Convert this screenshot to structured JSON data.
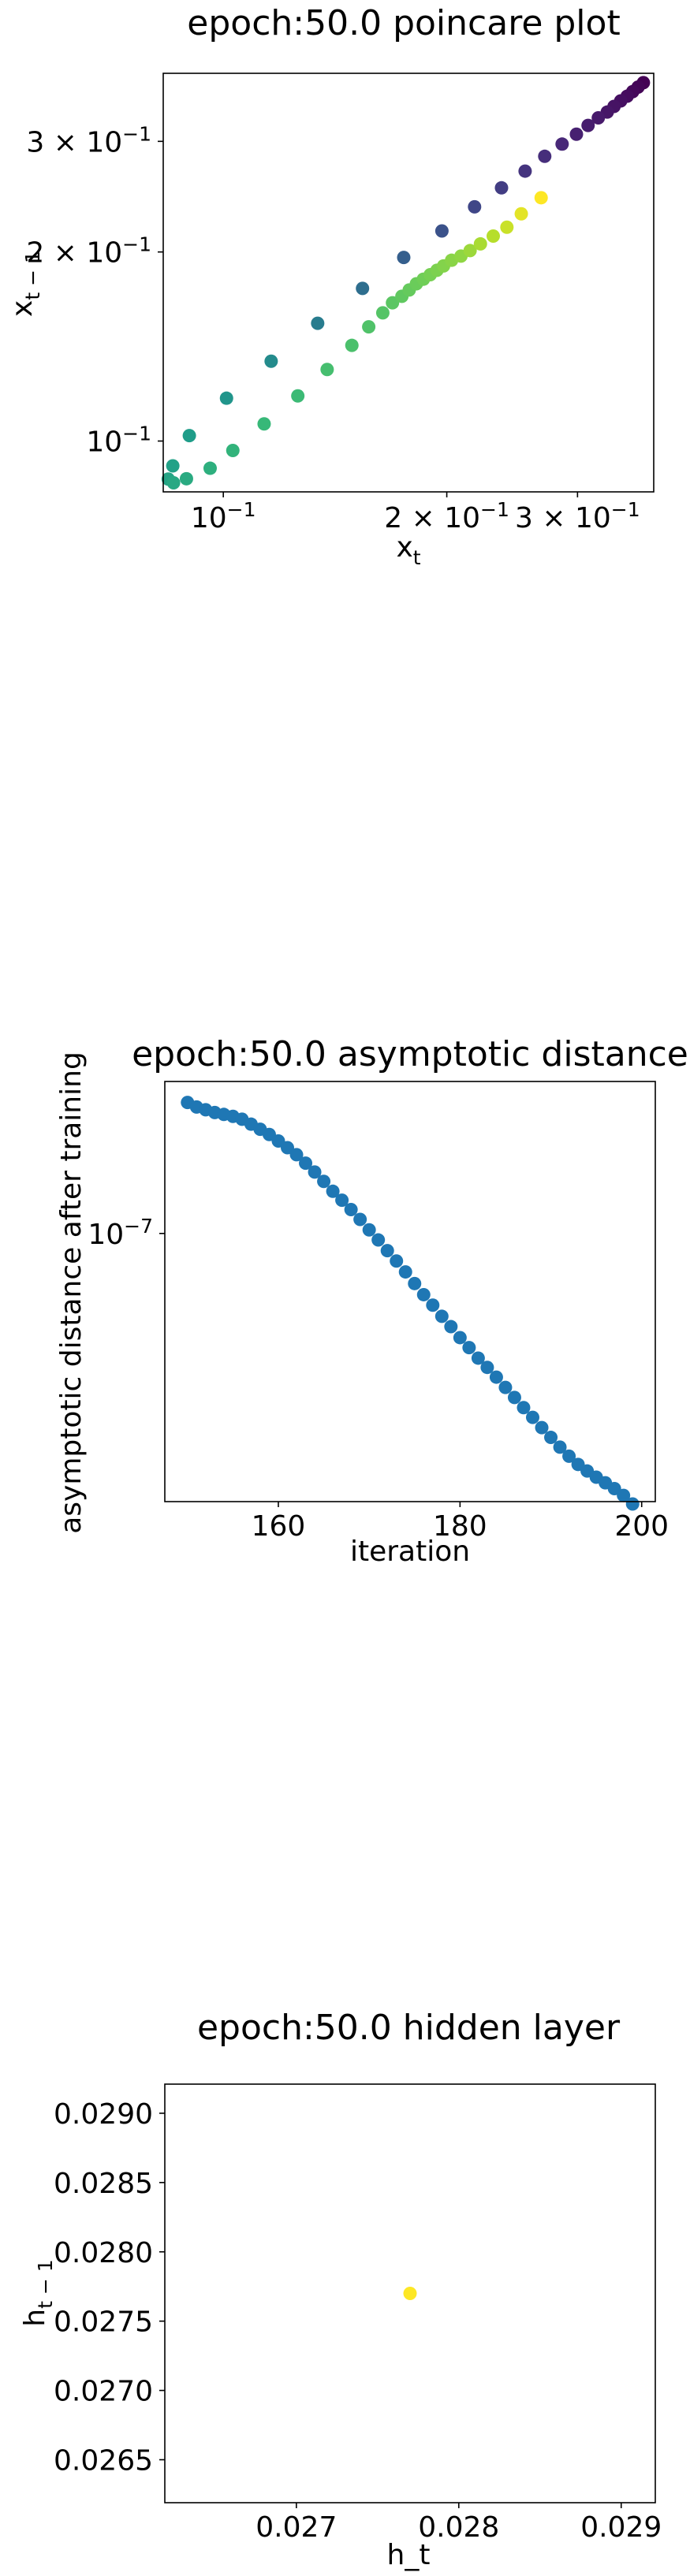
{
  "chart_data": [
    {
      "type": "scatter",
      "title": "epoch:50.0 poincare plot",
      "xlabel": "x",
      "xlabel_sub": "t",
      "ylabel": "x",
      "ylabel_sub": "t − 1",
      "xscale": "log",
      "yscale": "log",
      "xlim": [
        0.083,
        0.38
      ],
      "ylim": [
        0.083,
        0.385
      ],
      "colormap": "viridis",
      "x_ticks": [
        {
          "value": 0.1,
          "mant": "",
          "exp": "−1"
        },
        {
          "value": 0.2,
          "mant": "2 × ",
          "exp": "−1"
        },
        {
          "value": 0.3,
          "mant": "3 × ",
          "exp": "−1"
        }
      ],
      "y_ticks": [
        {
          "value": 0.1,
          "mant": "",
          "exp": "−1"
        },
        {
          "value": 0.2,
          "mant": "2 × ",
          "exp": "−1"
        },
        {
          "value": 0.3,
          "mant": "3 × ",
          "exp": "−1"
        }
      ],
      "points": [
        {
          "x": 0.368,
          "y": 0.372,
          "c": 0.0
        },
        {
          "x": 0.362,
          "y": 0.366,
          "c": 0.01
        },
        {
          "x": 0.356,
          "y": 0.36,
          "c": 0.02
        },
        {
          "x": 0.35,
          "y": 0.354,
          "c": 0.03
        },
        {
          "x": 0.343,
          "y": 0.348,
          "c": 0.04
        },
        {
          "x": 0.336,
          "y": 0.341,
          "c": 0.05
        },
        {
          "x": 0.329,
          "y": 0.334,
          "c": 0.06
        },
        {
          "x": 0.32,
          "y": 0.327,
          "c": 0.07
        },
        {
          "x": 0.31,
          "y": 0.318,
          "c": 0.08
        },
        {
          "x": 0.299,
          "y": 0.308,
          "c": 0.09
        },
        {
          "x": 0.286,
          "y": 0.297,
          "c": 0.11
        },
        {
          "x": 0.271,
          "y": 0.284,
          "c": 0.13
        },
        {
          "x": 0.255,
          "y": 0.269,
          "c": 0.15
        },
        {
          "x": 0.237,
          "y": 0.253,
          "c": 0.18
        },
        {
          "x": 0.218,
          "y": 0.236,
          "c": 0.21
        },
        {
          "x": 0.197,
          "y": 0.216,
          "c": 0.25
        },
        {
          "x": 0.175,
          "y": 0.196,
          "c": 0.3
        },
        {
          "x": 0.154,
          "y": 0.175,
          "c": 0.36
        },
        {
          "x": 0.134,
          "y": 0.154,
          "c": 0.42
        },
        {
          "x": 0.116,
          "y": 0.134,
          "c": 0.48
        },
        {
          "x": 0.101,
          "y": 0.117,
          "c": 0.52
        },
        {
          "x": 0.09,
          "y": 0.102,
          "c": 0.55
        },
        {
          "x": 0.0855,
          "y": 0.0913,
          "c": 0.57
        },
        {
          "x": 0.0843,
          "y": 0.087,
          "c": 0.58
        },
        {
          "x": 0.0857,
          "y": 0.0858,
          "c": 0.6
        },
        {
          "x": 0.0892,
          "y": 0.0871,
          "c": 0.61
        },
        {
          "x": 0.096,
          "y": 0.0905,
          "c": 0.63
        },
        {
          "x": 0.103,
          "y": 0.0966,
          "c": 0.65
        },
        {
          "x": 0.1135,
          "y": 0.1065,
          "c": 0.67
        },
        {
          "x": 0.126,
          "y": 0.118,
          "c": 0.68
        },
        {
          "x": 0.138,
          "y": 0.13,
          "c": 0.7
        },
        {
          "x": 0.149,
          "y": 0.142,
          "c": 0.71
        },
        {
          "x": 0.157,
          "y": 0.152,
          "c": 0.72
        },
        {
          "x": 0.164,
          "y": 0.16,
          "c": 0.73
        },
        {
          "x": 0.169,
          "y": 0.166,
          "c": 0.74
        },
        {
          "x": 0.174,
          "y": 0.17,
          "c": 0.75
        },
        {
          "x": 0.178,
          "y": 0.174,
          "c": 0.76
        },
        {
          "x": 0.182,
          "y": 0.178,
          "c": 0.77
        },
        {
          "x": 0.186,
          "y": 0.181,
          "c": 0.78
        },
        {
          "x": 0.19,
          "y": 0.184,
          "c": 0.79
        },
        {
          "x": 0.194,
          "y": 0.187,
          "c": 0.8
        },
        {
          "x": 0.198,
          "y": 0.19,
          "c": 0.81
        },
        {
          "x": 0.203,
          "y": 0.194,
          "c": 0.82
        },
        {
          "x": 0.209,
          "y": 0.197,
          "c": 0.83
        },
        {
          "x": 0.215,
          "y": 0.201,
          "c": 0.85
        },
        {
          "x": 0.222,
          "y": 0.206,
          "c": 0.87
        },
        {
          "x": 0.231,
          "y": 0.212,
          "c": 0.89
        },
        {
          "x": 0.241,
          "y": 0.219,
          "c": 0.92
        },
        {
          "x": 0.252,
          "y": 0.23,
          "c": 0.96
        },
        {
          "x": 0.268,
          "y": 0.244,
          "c": 1.0
        }
      ]
    },
    {
      "type": "scatter",
      "title": "epoch:50.0 asymptotic distance",
      "xlabel": "iteration",
      "ylabel": "asymptotic distance after training",
      "yscale": "log",
      "xlim": [
        147.5,
        201.5
      ],
      "ylim": [
        2.3e-08,
        2.3e-07
      ],
      "color": "#1f77b4",
      "x_ticks": [
        {
          "value": 160,
          "label": "160"
        },
        {
          "value": 180,
          "label": "180"
        },
        {
          "value": 200,
          "label": "200"
        }
      ],
      "y_ticks": [
        {
          "value": 1e-07,
          "mant": "10",
          "exp": "−7"
        }
      ],
      "x": [
        150,
        151,
        152,
        153,
        154,
        155,
        156,
        157,
        158,
        159,
        160,
        161,
        162,
        163,
        164,
        165,
        166,
        167,
        168,
        169,
        170,
        171,
        172,
        173,
        174,
        175,
        176,
        177,
        178,
        179,
        180,
        181,
        182,
        183,
        184,
        185,
        186,
        187,
        188,
        189,
        190,
        191,
        192,
        193,
        194,
        195,
        196,
        197,
        198,
        199
      ],
      "y": [
        2.05e-07,
        2e-07,
        1.97e-07,
        1.94e-07,
        1.92e-07,
        1.9e-07,
        1.87e-07,
        1.82e-07,
        1.77e-07,
        1.72e-07,
        1.66e-07,
        1.6e-07,
        1.54e-07,
        1.47e-07,
        1.4e-07,
        1.33e-07,
        1.26e-07,
        1.2e-07,
        1.14e-07,
        1.08e-07,
        1.02e-07,
        9.65e-08,
        9.1e-08,
        8.6e-08,
        8.1e-08,
        7.6e-08,
        7.15e-08,
        6.75e-08,
        6.35e-08,
        6e-08,
        5.65e-08,
        5.35e-08,
        5.05e-08,
        4.8e-08,
        4.55e-08,
        4.3e-08,
        4.07e-08,
        3.85e-08,
        3.65e-08,
        3.45e-08,
        3.27e-08,
        3.1e-08,
        2.95e-08,
        2.82e-08,
        2.72e-08,
        2.63e-08,
        2.55e-08,
        2.47e-08,
        2.38e-08,
        2.27e-08
      ]
    },
    {
      "type": "scatter",
      "title": "epoch:50.0 hidden layer",
      "xlabel": "h_t",
      "ylabel": "h",
      "ylabel_sub": "t − 1",
      "xlim": [
        0.02619,
        0.02921
      ],
      "ylim": [
        0.02619,
        0.02921
      ],
      "color": "#fde725",
      "x_ticks": [
        {
          "value": 0.027,
          "label": "0.027"
        },
        {
          "value": 0.028,
          "label": "0.028"
        },
        {
          "value": 0.029,
          "label": "0.029"
        }
      ],
      "y_ticks": [
        {
          "value": 0.0265,
          "label": "0.0265"
        },
        {
          "value": 0.027,
          "label": "0.0270"
        },
        {
          "value": 0.0275,
          "label": "0.0275"
        },
        {
          "value": 0.028,
          "label": "0.0280"
        },
        {
          "value": 0.0285,
          "label": "0.0285"
        },
        {
          "value": 0.029,
          "label": "0.0290"
        }
      ],
      "x": [
        0.0277
      ],
      "y": [
        0.0277
      ]
    }
  ]
}
